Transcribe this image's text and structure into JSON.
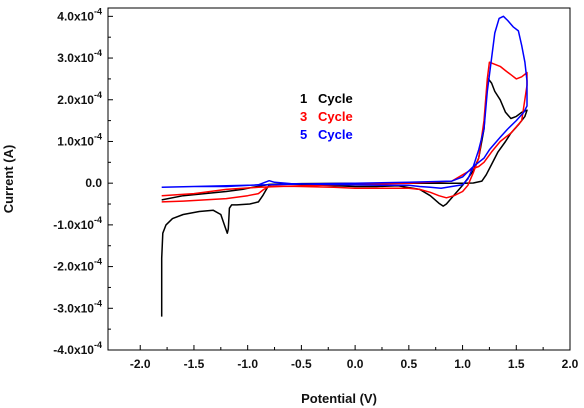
{
  "chart_data": {
    "type": "line",
    "title": "",
    "xlabel": "Potential (V)",
    "ylabel": "Current (A)",
    "xlim": [
      -2.3,
      2.0
    ],
    "ylim": [
      -0.0004,
      0.00042
    ],
    "x_ticks": [
      -2.0,
      -1.5,
      -1.0,
      -0.5,
      0.0,
      0.5,
      1.0,
      1.5,
      2.0
    ],
    "x_tick_labels": [
      "-2.0",
      "-1.5",
      "-1.0",
      "-0.5",
      "0.0",
      "0.5",
      "1.0",
      "1.5",
      "2.0"
    ],
    "y_ticks": [
      -0.0004,
      -0.0003,
      -0.0002,
      -0.0001,
      0.0,
      0.0001,
      0.0002,
      0.0003,
      0.0004
    ],
    "y_tick_labels": [
      {
        "mantissa": "-4.0x10",
        "exp": "-4"
      },
      {
        "mantissa": "-3.0x10",
        "exp": "-4"
      },
      {
        "mantissa": "-2.0x10",
        "exp": "-4"
      },
      {
        "mantissa": "-1.0x10",
        "exp": "-4"
      },
      {
        "mantissa": "0.0",
        "exp": ""
      },
      {
        "mantissa": "1.0x10",
        "exp": "-4"
      },
      {
        "mantissa": "2.0x10",
        "exp": "-4"
      },
      {
        "mantissa": "3.0x10",
        "exp": "-4"
      },
      {
        "mantissa": "4.0x10",
        "exp": "-4"
      }
    ],
    "grid": false,
    "legend_position": "center",
    "legend": [
      {
        "number": "1",
        "text": "Cycle",
        "color": "#000000"
      },
      {
        "number": "3",
        "text": "Cycle",
        "color": "#ff0000"
      },
      {
        "number": "5",
        "text": "Cycle",
        "color": "#0000ff"
      }
    ],
    "series": [
      {
        "color": "#000000",
        "points": [
          [
            -1.8,
            -0.00032
          ],
          [
            -1.8,
            -0.00018
          ],
          [
            -1.79,
            -0.00012
          ],
          [
            -1.76,
            -0.0001
          ],
          [
            -1.7,
            -8.5e-05
          ],
          [
            -1.6,
            -7.5e-05
          ],
          [
            -1.45,
            -6.8e-05
          ],
          [
            -1.32,
            -6.5e-05
          ],
          [
            -1.25,
            -7.5e-05
          ],
          [
            -1.21,
            -0.000105
          ],
          [
            -1.19,
            -0.00012
          ],
          [
            -1.18,
            -0.00011
          ],
          [
            -1.17,
            -6e-05
          ],
          [
            -1.15,
            -5.2e-05
          ],
          [
            -1.1,
            -5.2e-05
          ],
          [
            -0.98,
            -5e-05
          ],
          [
            -0.9,
            -4.5e-05
          ],
          [
            -0.86,
            -3e-05
          ],
          [
            -0.82,
            -1.2e-05
          ],
          [
            -0.8,
            -5e-06
          ],
          [
            -0.75,
            -3e-06
          ],
          [
            -0.6,
            -2e-06
          ],
          [
            -0.3,
            -5e-06
          ],
          [
            0.0,
            -8e-06
          ],
          [
            0.2,
            -8e-06
          ],
          [
            0.4,
            -6e-06
          ],
          [
            0.6,
            -1.5e-05
          ],
          [
            0.7,
            -3e-05
          ],
          [
            0.78,
            -4.8e-05
          ],
          [
            0.82,
            -5.5e-05
          ],
          [
            0.85,
            -5e-05
          ],
          [
            0.9,
            -3.5e-05
          ],
          [
            0.95,
            -2e-05
          ],
          [
            1.0,
            -5e-06
          ],
          [
            1.05,
            1.2e-05
          ],
          [
            1.1,
            3e-05
          ],
          [
            1.15,
            6e-05
          ],
          [
            1.2,
            0.00013
          ],
          [
            1.22,
            0.00021
          ],
          [
            1.24,
            0.00025
          ],
          [
            1.27,
            0.00024
          ],
          [
            1.3,
            0.00022
          ],
          [
            1.35,
            0.0002
          ],
          [
            1.4,
            0.00017
          ],
          [
            1.45,
            0.000155
          ],
          [
            1.5,
            0.00016
          ],
          [
            1.55,
            0.00017
          ],
          [
            1.6,
            0.000175
          ],
          [
            1.58,
            0.00016
          ],
          [
            1.52,
            0.00014
          ],
          [
            1.45,
            0.00012
          ],
          [
            1.4,
            0.0001
          ],
          [
            1.33,
            7.5e-05
          ],
          [
            1.27,
            4.5e-05
          ],
          [
            1.22,
            2e-05
          ],
          [
            1.18,
            5e-06
          ],
          [
            1.1,
            5e-07
          ],
          [
            1.0,
            0.0
          ],
          [
            0.5,
            0.0
          ],
          [
            0.0,
            0.0
          ],
          [
            -0.5,
            -1e-06
          ],
          [
            -0.8,
            -3e-06
          ],
          [
            -0.95,
            -1e-05
          ],
          [
            -1.05,
            -1.5e-05
          ],
          [
            -1.2,
            -2e-05
          ],
          [
            -1.4,
            -2.5e-05
          ],
          [
            -1.6,
            -3e-05
          ],
          [
            -1.8,
            -4e-05
          ]
        ]
      },
      {
        "color": "#ff0000",
        "points": [
          [
            -1.8,
            -4.5e-05
          ],
          [
            -1.6,
            -4.3e-05
          ],
          [
            -1.4,
            -4e-05
          ],
          [
            -1.2,
            -3.7e-05
          ],
          [
            -1.0,
            -3e-05
          ],
          [
            -0.9,
            -2.5e-05
          ],
          [
            -0.85,
            -1.5e-05
          ],
          [
            -0.8,
            -8e-06
          ],
          [
            -0.7,
            -7e-06
          ],
          [
            -0.5,
            -8e-06
          ],
          [
            -0.2,
            -1e-05
          ],
          [
            0.0,
            -1.2e-05
          ],
          [
            0.3,
            -1.2e-05
          ],
          [
            0.5,
            -1.2e-05
          ],
          [
            0.6,
            -1.5e-05
          ],
          [
            0.7,
            -2.2e-05
          ],
          [
            0.78,
            -3e-05
          ],
          [
            0.85,
            -3.5e-05
          ],
          [
            0.92,
            -3e-05
          ],
          [
            1.0,
            -2e-05
          ],
          [
            1.05,
            -5e-06
          ],
          [
            1.1,
            2.5e-05
          ],
          [
            1.15,
            6e-05
          ],
          [
            1.2,
            0.00015
          ],
          [
            1.23,
            0.00025
          ],
          [
            1.25,
            0.00029
          ],
          [
            1.3,
            0.000285
          ],
          [
            1.35,
            0.00028
          ],
          [
            1.4,
            0.00027
          ],
          [
            1.45,
            0.00026
          ],
          [
            1.5,
            0.00025
          ],
          [
            1.55,
            0.000255
          ],
          [
            1.6,
            0.000265
          ],
          [
            1.6,
            0.000235
          ],
          [
            1.55,
            0.00015
          ],
          [
            1.45,
            0.00012
          ],
          [
            1.35,
            0.0001
          ],
          [
            1.27,
            7.5e-05
          ],
          [
            1.2,
            5e-05
          ],
          [
            1.15,
            4e-05
          ],
          [
            1.1,
            3.5e-05
          ],
          [
            1.0,
            2e-05
          ],
          [
            0.9,
            5e-06
          ],
          [
            0.5,
            0.0
          ],
          [
            0.0,
            -3e-06
          ],
          [
            -0.5,
            -6e-06
          ],
          [
            -0.9,
            -1e-05
          ],
          [
            -1.2,
            -1.5e-05
          ],
          [
            -1.5,
            -2.5e-05
          ],
          [
            -1.8,
            -3e-05
          ]
        ]
      },
      {
        "color": "#0000ff",
        "points": [
          [
            -1.8,
            -1e-05
          ],
          [
            -1.5,
            -8e-06
          ],
          [
            -1.2,
            -8e-06
          ],
          [
            -0.9,
            -4e-06
          ],
          [
            -0.8,
            6e-06
          ],
          [
            -0.75,
            2e-06
          ],
          [
            -0.6,
            -1e-06
          ],
          [
            -0.3,
            -3e-06
          ],
          [
            0.0,
            -4e-06
          ],
          [
            0.3,
            -5e-06
          ],
          [
            0.5,
            -5e-06
          ],
          [
            0.6,
            -8e-06
          ],
          [
            0.7,
            -1e-05
          ],
          [
            0.8,
            -1.2e-05
          ],
          [
            0.9,
            -8e-06
          ],
          [
            1.0,
            -4e-06
          ],
          [
            1.05,
            1e-05
          ],
          [
            1.1,
            4e-05
          ],
          [
            1.15,
            8e-05
          ],
          [
            1.2,
            0.00013
          ],
          [
            1.23,
            0.00022
          ],
          [
            1.27,
            0.0003
          ],
          [
            1.3,
            0.00036
          ],
          [
            1.34,
            0.000395
          ],
          [
            1.38,
            0.0004
          ],
          [
            1.42,
            0.00039
          ],
          [
            1.47,
            0.000375
          ],
          [
            1.52,
            0.000365
          ],
          [
            1.55,
            0.00033
          ],
          [
            1.58,
            0.00029
          ],
          [
            1.6,
            0.000245
          ],
          [
            1.6,
            0.000185
          ],
          [
            1.57,
            0.00017
          ],
          [
            1.5,
            0.00015
          ],
          [
            1.42,
            0.00013
          ],
          [
            1.35,
            0.00011
          ],
          [
            1.3,
            9.5e-05
          ],
          [
            1.25,
            8e-05
          ],
          [
            1.2,
            6e-05
          ],
          [
            1.15,
            5e-05
          ],
          [
            1.1,
            4e-05
          ],
          [
            1.0,
            1.5e-05
          ],
          [
            0.9,
            5e-06
          ],
          [
            0.5,
            2e-06
          ],
          [
            0.0,
            0.0
          ],
          [
            -0.5,
            -2e-06
          ],
          [
            -1.0,
            -5e-06
          ],
          [
            -1.5,
            -8e-06
          ],
          [
            -1.8,
            -1e-05
          ]
        ]
      }
    ]
  }
}
